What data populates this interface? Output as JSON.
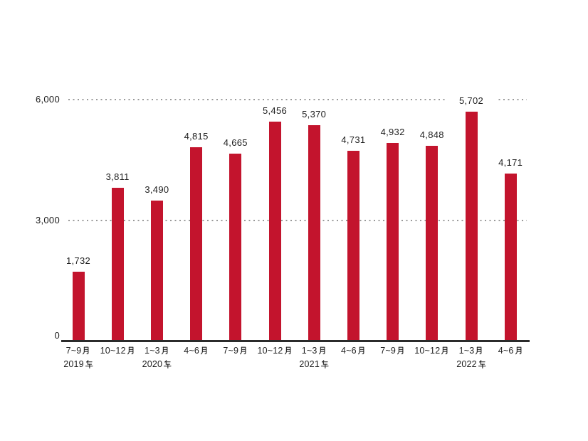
{
  "chart_data": {
    "type": "bar",
    "categories": [
      "7~9月",
      "10~12月",
      "1~3月",
      "4~6月",
      "7~9月",
      "10~12月",
      "1~3月",
      "4~6月",
      "7~9月",
      "10~12月",
      "1~3月",
      "4~6月"
    ],
    "values": [
      1732,
      3811,
      3490,
      4815,
      4665,
      5456,
      5370,
      4731,
      4932,
      4848,
      5702,
      4171
    ],
    "value_labels": [
      "1,732",
      "3,811",
      "3,490",
      "4,815",
      "4,665",
      "5,456",
      "5,370",
      "4,731",
      "4,932",
      "4,848",
      "5,702",
      "4,171"
    ],
    "year_labels": [
      {
        "text": "2019年",
        "bar_index": 0
      },
      {
        "text": "2020年",
        "bar_index": 2
      },
      {
        "text": "2021年",
        "bar_index": 6
      },
      {
        "text": "2022年",
        "bar_index": 10
      }
    ],
    "xlabel": "",
    "ylabel": "",
    "ylim": [
      0,
      6000
    ],
    "yticks": [
      0,
      3000,
      6000
    ],
    "ytick_labels": [
      "0",
      "3,000",
      "6,000"
    ],
    "grid": {
      "horizontal": "dotted",
      "at": [
        3000,
        6000
      ]
    },
    "legend": "none",
    "bar_color": "#c3142d",
    "axis_color": "#2b2b2b",
    "grid_dot_color": "#999999",
    "text_color": "#1e1e1e",
    "background": "#ffffff"
  }
}
